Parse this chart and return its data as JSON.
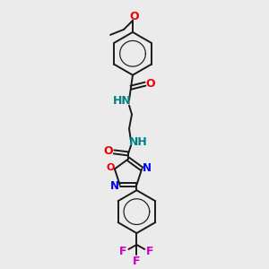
{
  "bg_color": "#ebebeb",
  "bond_color": "#1a1a1a",
  "N_color": "#0000ee",
  "O_color": "#ee0000",
  "F_color": "#cc00cc",
  "NH_color": "#008080",
  "figsize": [
    3.0,
    3.0
  ],
  "dpi": 100,
  "xlim": [
    0,
    300
  ],
  "ylim": [
    0,
    300
  ]
}
